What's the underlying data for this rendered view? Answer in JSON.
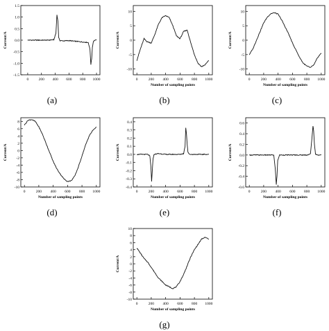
{
  "colors": {
    "axis": "#000000",
    "line": "#111111",
    "background": "#ffffff"
  },
  "chart_data": [
    {
      "type": "line",
      "caption": "(a)",
      "ylabel": "Current/A",
      "xlabel": "",
      "xlim": [
        -100,
        1050
      ],
      "ylim": [
        -1.5,
        1.5
      ],
      "xticks": [
        0,
        200,
        400,
        600,
        800,
        1000
      ],
      "yticks": [
        -1.5,
        -1.0,
        -0.5,
        0.0,
        0.5,
        1.0,
        1.5
      ],
      "ytick_labels": [
        "-1.5",
        "-1.0",
        "-0.5",
        "0.0",
        "0.5",
        "1.0",
        "1.5"
      ],
      "series": [
        {
          "x": [
            0,
            100,
            200,
            300,
            380,
            410,
            425,
            440,
            450,
            470,
            520,
            600,
            700,
            800,
            880,
            905,
            918,
            930,
            940,
            955,
            975,
            1000
          ],
          "y": [
            0.0,
            0.0,
            0.0,
            0.0,
            0.02,
            0.3,
            1.1,
            0.8,
            0.1,
            -0.02,
            -0.03,
            -0.02,
            -0.05,
            -0.08,
            -0.1,
            -0.4,
            -1.05,
            -0.8,
            -0.3,
            -0.05,
            0.0,
            0.0
          ]
        }
      ]
    },
    {
      "type": "line",
      "caption": "(b)",
      "ylabel": "Current/A",
      "xlabel": "Number of sampling points",
      "xlim": [
        -50,
        1050
      ],
      "ylim": [
        -12,
        12
      ],
      "xticks": [
        0,
        200,
        400,
        600,
        800,
        1000
      ],
      "yticks": [
        -10,
        -5,
        0,
        5,
        10
      ],
      "ytick_labels": [
        "-10",
        "-5",
        "0",
        "5",
        "10"
      ],
      "series": [
        {
          "x": [
            0,
            50,
            100,
            140,
            200,
            250,
            300,
            350,
            400,
            450,
            500,
            550,
            600,
            650,
            700,
            750,
            800,
            850,
            900,
            950,
            1000
          ],
          "y": [
            -7,
            -3,
            0.5,
            -0.5,
            -1,
            2,
            5.5,
            7.8,
            8.5,
            7.8,
            5,
            1.5,
            0.5,
            3,
            3.5,
            -1,
            -5,
            -8,
            -9.2,
            -8.5,
            -7
          ]
        }
      ]
    },
    {
      "type": "line",
      "caption": "(c)",
      "ylabel": "Current/A",
      "xlabel": "Number of sampling points",
      "xlim": [
        -50,
        1050
      ],
      "ylim": [
        -12,
        12
      ],
      "xticks": [
        0,
        200,
        400,
        600,
        800,
        1000
      ],
      "yticks": [
        -10,
        -5,
        0,
        5,
        10
      ],
      "ytick_labels": [
        "-10",
        "-5",
        "0",
        "5",
        "10"
      ],
      "series": [
        {
          "x": [
            0,
            50,
            100,
            150,
            200,
            250,
            300,
            350,
            400,
            450,
            500,
            550,
            600,
            650,
            700,
            750,
            800,
            850,
            900,
            950,
            1000
          ],
          "y": [
            -5,
            -3,
            0,
            3,
            6,
            8,
            9.2,
            9.5,
            9,
            7,
            4.5,
            2,
            -1,
            -3.5,
            -6,
            -8,
            -9,
            -9.5,
            -8.5,
            -6,
            -4.5
          ]
        }
      ]
    },
    {
      "type": "line",
      "caption": "(d)",
      "ylabel": "Current/A",
      "xlabel": "Number of sampling points",
      "xlim": [
        -50,
        1050
      ],
      "ylim": [
        -10,
        9
      ],
      "xticks": [
        0,
        200,
        400,
        600,
        800,
        1000
      ],
      "yticks": [
        -10,
        -8,
        -6,
        -4,
        -2,
        0,
        2,
        4,
        6,
        8
      ],
      "ytick_labels": [
        "-10",
        "-8",
        "-6",
        "-4",
        "-2",
        "0",
        "2",
        "4",
        "6",
        "8"
      ],
      "series": [
        {
          "x": [
            0,
            50,
            100,
            150,
            200,
            250,
            300,
            350,
            400,
            450,
            500,
            550,
            600,
            650,
            700,
            750,
            800,
            850,
            900,
            950,
            1000
          ],
          "y": [
            7,
            8.3,
            8.5,
            8,
            6.5,
            4.5,
            2,
            -0.5,
            -3,
            -5,
            -6.5,
            -7.8,
            -8.5,
            -8.3,
            -7,
            -4.5,
            -1.5,
            1.5,
            4,
            5.5,
            6.5
          ]
        }
      ]
    },
    {
      "type": "line",
      "caption": "(e)",
      "ylabel": "Current/A",
      "xlabel": "Number of sampling points",
      "xlim": [
        -50,
        1050
      ],
      "ylim": [
        -0.4,
        0.45
      ],
      "xticks": [
        0,
        200,
        400,
        600,
        800,
        1000
      ],
      "yticks": [
        -0.4,
        -0.3,
        -0.2,
        -0.1,
        0.0,
        0.1,
        0.2,
        0.3,
        0.4
      ],
      "ytick_labels": [
        "-0.4",
        "-0.3",
        "-0.2",
        "-0.1",
        "0.0",
        "0.1",
        "0.2",
        "0.3",
        "0.4"
      ],
      "series": [
        {
          "x": [
            0,
            150,
            180,
            195,
            205,
            215,
            225,
            240,
            300,
            400,
            500,
            600,
            650,
            670,
            680,
            690,
            700,
            710,
            730,
            800,
            900,
            1000
          ],
          "y": [
            0,
            0,
            -0.02,
            -0.15,
            -0.33,
            -0.2,
            -0.05,
            0,
            0.01,
            0,
            0,
            0,
            0.01,
            0.1,
            0.33,
            0.25,
            0.12,
            0.03,
            0,
            0,
            0,
            0
          ]
        }
      ]
    },
    {
      "type": "line",
      "caption": "(f)",
      "ylabel": "Current/A",
      "xlabel": "Number of sampling points",
      "xlim": [
        -50,
        1050
      ],
      "ylim": [
        -0.6,
        0.7
      ],
      "xticks": [
        0,
        200,
        400,
        600,
        800,
        1000
      ],
      "yticks": [
        -0.6,
        -0.4,
        -0.2,
        0.0,
        0.2,
        0.4,
        0.6
      ],
      "ytick_labels": [
        "-0.6",
        "-0.4",
        "-0.2",
        "0.0",
        "0.2",
        "0.4",
        "0.6"
      ],
      "series": [
        {
          "x": [
            0,
            100,
            200,
            300,
            340,
            360,
            375,
            385,
            395,
            420,
            500,
            600,
            700,
            800,
            850,
            870,
            885,
            895,
            905,
            920,
            950,
            1000
          ],
          "y": [
            0,
            0,
            0,
            0,
            0,
            -0.25,
            -0.55,
            -0.4,
            -0.1,
            0,
            0,
            0,
            0,
            0,
            0.02,
            0.3,
            0.55,
            0.45,
            0.2,
            0.02,
            0,
            0
          ]
        }
      ]
    },
    {
      "type": "line",
      "caption": "(g)",
      "ylabel": "Current/A",
      "xlabel": "Number of sampling points",
      "xlim": [
        -50,
        1050
      ],
      "ylim": [
        -10,
        10
      ],
      "xticks": [
        0,
        200,
        400,
        600,
        800,
        1000
      ],
      "yticks": [
        -10,
        -8,
        -6,
        -4,
        -2,
        0,
        2,
        4,
        6,
        8,
        10
      ],
      "ytick_labels": [
        "-10",
        "-8",
        "-6",
        "-4",
        "-2",
        "0",
        "2",
        "4",
        "6",
        "8",
        "10"
      ],
      "series": [
        {
          "x": [
            0,
            50,
            100,
            150,
            200,
            250,
            300,
            350,
            400,
            450,
            500,
            550,
            600,
            650,
            700,
            750,
            800,
            850,
            900,
            950,
            1000
          ],
          "y": [
            4.5,
            3,
            1.5,
            0.5,
            -1,
            -2.5,
            -4,
            -5,
            -6,
            -6.5,
            -7,
            -6.5,
            -5,
            -3,
            -0.5,
            2,
            4,
            5.5,
            7,
            7.5,
            7
          ]
        }
      ]
    }
  ]
}
